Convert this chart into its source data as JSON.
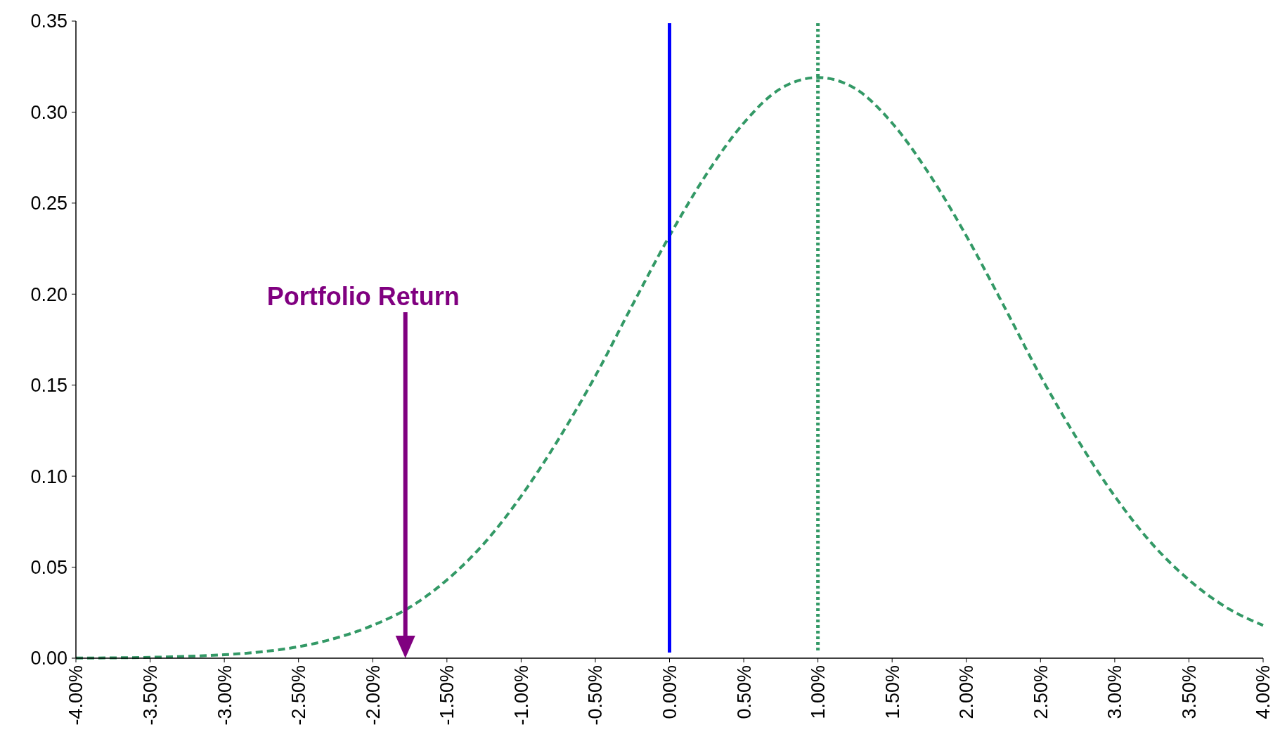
{
  "chart_data": {
    "type": "line",
    "x": [
      -4,
      -3.75,
      -3.5,
      -3.25,
      -3,
      -2.75,
      -2.5,
      -2.25,
      -2,
      -1.75,
      -1.5,
      -1.25,
      -1,
      -0.75,
      -0.5,
      -0.25,
      0,
      0.25,
      0.5,
      0.75,
      1,
      1.25,
      1.5,
      1.75,
      2,
      2.25,
      2.5,
      2.75,
      3,
      3.25,
      3.5,
      3.75,
      4
    ],
    "series": [
      {
        "color": "#339966",
        "line_style": "dashed",
        "marker": "none",
        "values": [
          0.0001,
          0.0002,
          0.0005,
          0.001,
          0.0019,
          0.0035,
          0.0063,
          0.011,
          0.018,
          0.028,
          0.043,
          0.063,
          0.089,
          0.12,
          0.155,
          0.194,
          0.232,
          0.266,
          0.294,
          0.313,
          0.319,
          0.313,
          0.294,
          0.266,
          0.232,
          0.194,
          0.155,
          0.12,
          0.089,
          0.063,
          0.043,
          0.028,
          0.018
        ]
      }
    ],
    "xlim": [
      -4,
      4
    ],
    "xticks": [
      {
        "value": -4,
        "label": "-4.00%"
      },
      {
        "value": -3.5,
        "label": "-3.50%"
      },
      {
        "value": -3,
        "label": "-3.00%"
      },
      {
        "value": -2.5,
        "label": "-2.50%"
      },
      {
        "value": -2,
        "label": "-2.00%"
      },
      {
        "value": -1.5,
        "label": "-1.50%"
      },
      {
        "value": -1,
        "label": "-1.00%"
      },
      {
        "value": -0.5,
        "label": "-0.50%"
      },
      {
        "value": 0,
        "label": "0.00%"
      },
      {
        "value": 0.5,
        "label": "0.50%"
      },
      {
        "value": 1,
        "label": "1.00%"
      },
      {
        "value": 1.5,
        "label": "1.50%"
      },
      {
        "value": 2,
        "label": "2.00%"
      },
      {
        "value": 2.5,
        "label": "2.50%"
      },
      {
        "value": 3,
        "label": "3.00%"
      },
      {
        "value": 3.5,
        "label": "3.50%"
      },
      {
        "value": 4,
        "label": "4.00%"
      }
    ],
    "ylim": [
      0,
      0.35
    ],
    "yticks": [
      {
        "value": 0,
        "label": "0.00"
      },
      {
        "value": 0.05,
        "label": "0.05"
      },
      {
        "value": 0.1,
        "label": "0.10"
      },
      {
        "value": 0.15,
        "label": "0.15"
      },
      {
        "value": 0.2,
        "label": "0.20"
      },
      {
        "value": 0.25,
        "label": "0.25"
      },
      {
        "value": 0.3,
        "label": "0.30"
      },
      {
        "value": 0.35,
        "label": "0.35"
      }
    ],
    "ref_lines": [
      {
        "axis": "x",
        "value": 0,
        "color": "#0000ff",
        "line_style": "solid"
      },
      {
        "axis": "x",
        "value": 1,
        "color": "#339966",
        "line_style": "dotted"
      }
    ],
    "annotations": [
      "Portfolio Return"
    ],
    "grid": false
  }
}
